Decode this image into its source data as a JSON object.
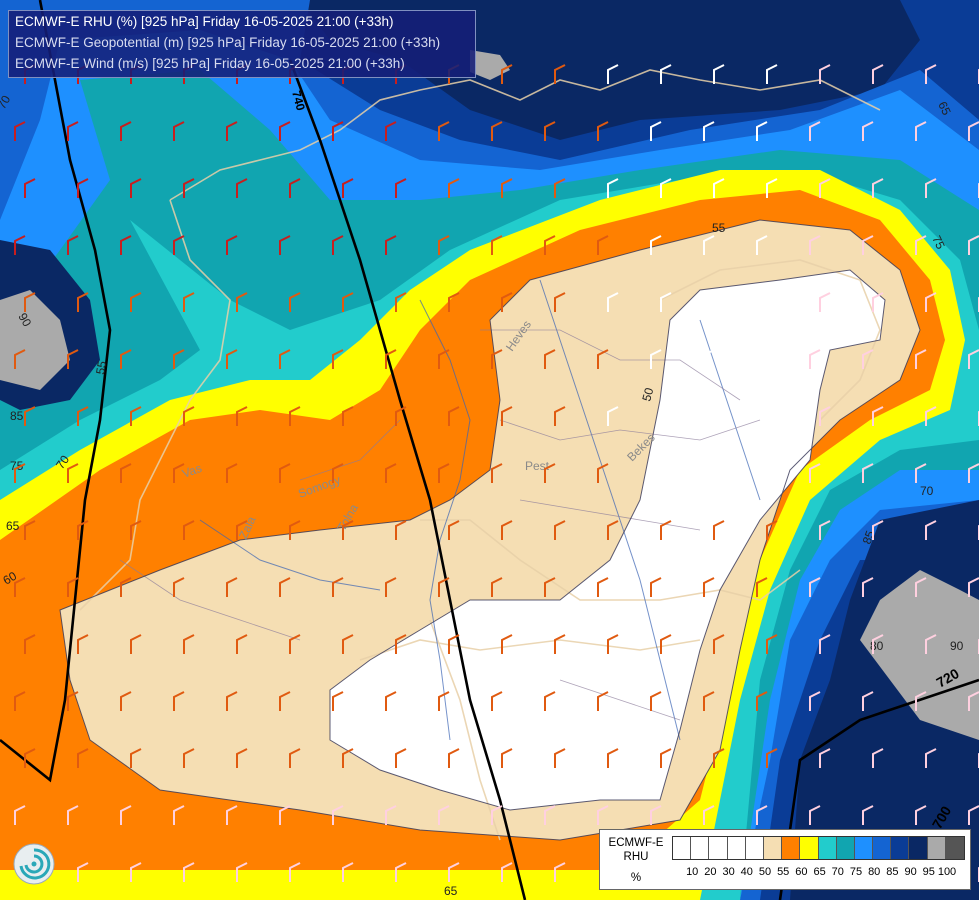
{
  "title": {
    "line1": "ECMWF-E RHU (%) [925 hPa] Friday 16-05-2025 21:00 (+33h)",
    "line2": "ECMWF-E Geopotential (m) [925 hPa] Friday 16-05-2025 21:00 (+33h)",
    "line3": "ECMWF-E Wind (m/s) [925 hPa] Friday 16-05-2025 21:00 (+33h)"
  },
  "legend": {
    "model": "ECMWF-E",
    "variable": "RHU",
    "unit": "%",
    "colors": [
      "#ffffff",
      "#ffffff",
      "#ffffff",
      "#ffffff",
      "#ffffff",
      "#f5deb3",
      "#ff8000",
      "#ffff00",
      "#22cccc",
      "#11a5b0",
      "#1e90ff",
      "#1464d2",
      "#0a3c96",
      "#0a2864",
      "#aaaaaa",
      "#555555"
    ],
    "ticks": [
      "10",
      "20",
      "30",
      "40",
      "50",
      "55",
      "60",
      "65",
      "70",
      "75",
      "80",
      "85",
      "90",
      "95",
      "100"
    ]
  },
  "contour_labels": {
    "rhu": [
      "70",
      "65",
      "75",
      "90",
      "85",
      "75",
      "70",
      "65",
      "60",
      "50",
      "55",
      "70",
      "85",
      "90",
      "80",
      "55",
      "65"
    ],
    "geopotential": [
      "740",
      "720",
      "700"
    ]
  },
  "place_labels": [
    "Heves",
    "Pest",
    "Bekes",
    "Vas",
    "Somogy",
    "Zala",
    "Tolna"
  ]
}
